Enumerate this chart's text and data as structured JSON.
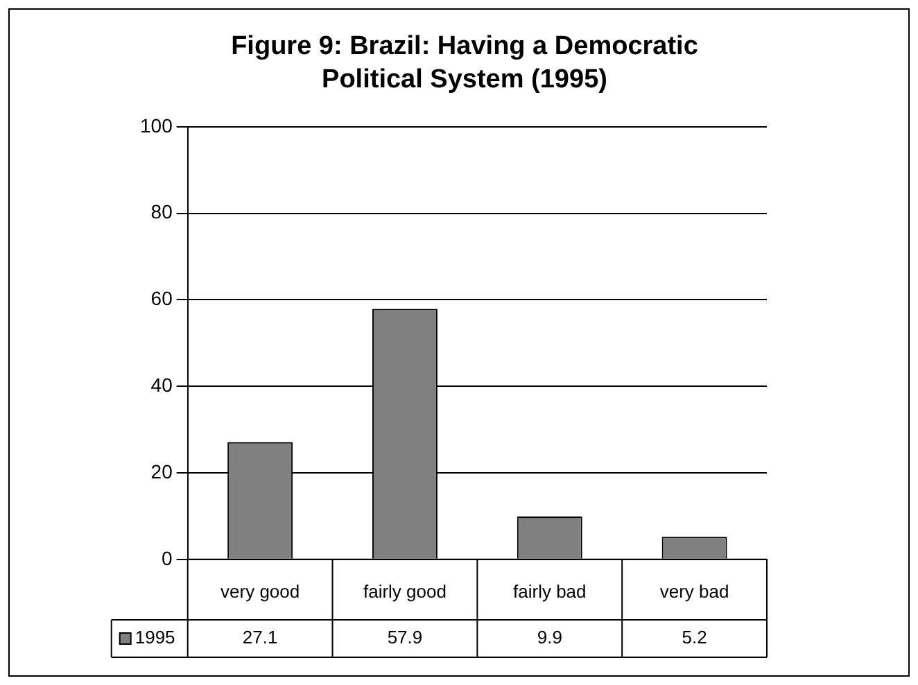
{
  "chart_data": {
    "type": "bar",
    "title": "Figure 9: Brazil: Having a Democratic Political System (1995)",
    "categories": [
      "very good",
      "fairly good",
      "fairly bad",
      "very bad"
    ],
    "series": [
      {
        "name": "1995",
        "color": "#808080",
        "values": [
          27.1,
          57.9,
          9.9,
          5.2
        ]
      }
    ],
    "ylim": [
      0,
      100
    ],
    "yticks": [
      0,
      20,
      40,
      60,
      80,
      100
    ],
    "grid": "y",
    "legend": "bottom left",
    "data_labels": true
  }
}
